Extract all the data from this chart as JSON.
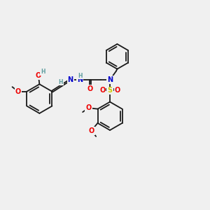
{
  "bg_color": "#f0f0f0",
  "bond_color": "#1a1a1a",
  "bond_width": 1.3,
  "atom_colors": {
    "C": "#1a1a1a",
    "H": "#5f9ea0",
    "N": "#0000cc",
    "O": "#ee0000",
    "S": "#cccc00"
  },
  "font_size": 7.0
}
